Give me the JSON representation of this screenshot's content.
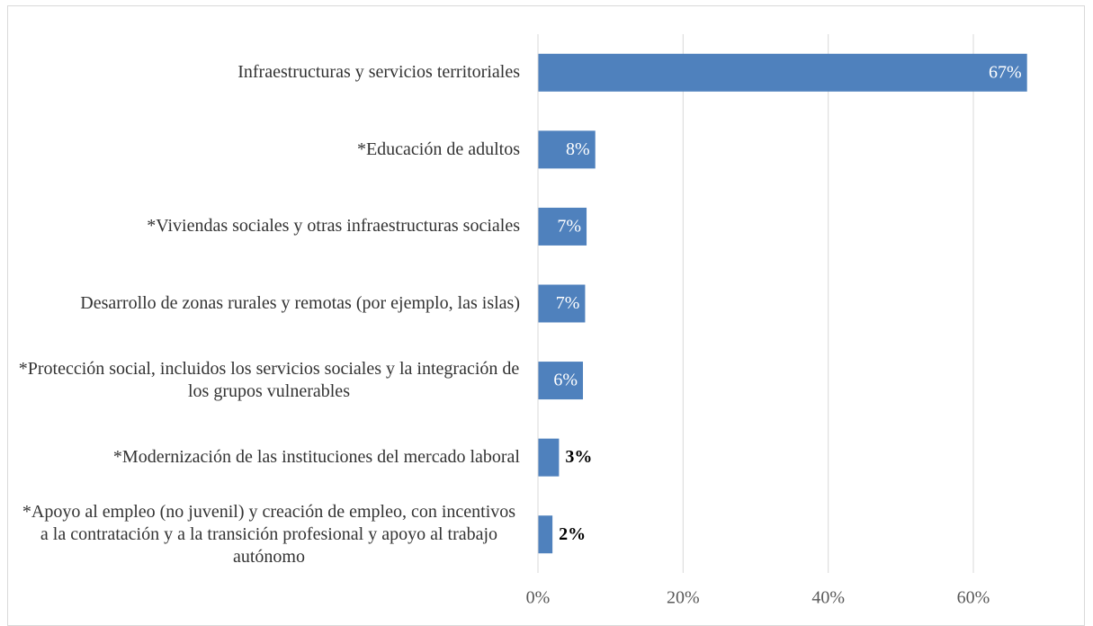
{
  "chart_data": {
    "type": "bar",
    "orientation": "horizontal",
    "categories": [
      "Infraestructuras y servicios territoriales",
      "*Educación de adultos",
      "*Viviendas sociales y otras infraestructuras sociales",
      "Desarrollo de zonas rurales y remotas (por ejemplo, las islas)",
      "*Protección social, incluidos los servicios sociales y la integración de los grupos vulnerables",
      "*Modernización de las instituciones del mercado laboral",
      "*Apoyo al empleo (no juvenil) y creación de empleo, con incentivos a la contratación y a la transición profesional y apoyo al trabajo autónomo"
    ],
    "values": [
      67.4,
      7.9,
      6.7,
      6.5,
      6.2,
      2.9,
      2.0
    ],
    "value_labels": [
      "67%",
      "8%",
      "7%",
      "7%",
      "6%",
      "3%",
      "2%"
    ],
    "color": "#4f81bd",
    "xlim": [
      0,
      70
    ],
    "xticks": [
      {
        "value": 0,
        "label": "0%"
      },
      {
        "value": 20,
        "label": "20%"
      },
      {
        "value": 40,
        "label": "40%"
      },
      {
        "value": 60,
        "label": "60%"
      }
    ],
    "grid": true
  }
}
